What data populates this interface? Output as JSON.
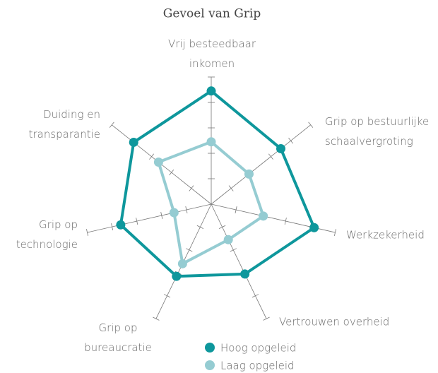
{
  "chart_data": {
    "type": "radar",
    "title": "Gevoel van Grip",
    "categories": [
      "Vrij besteedbaar\ninkomen",
      "Grip op bestuurlijke\nschaalvergroting",
      "Werkzekerheid",
      "Vertrouwen overheid",
      "Grip op\nbureaucratie",
      "Grip op\ntechnologie",
      "Duiding en\ntransparantie"
    ],
    "rlim": [
      0,
      10
    ],
    "rticks": [
      2,
      4,
      6,
      8,
      10
    ],
    "series": [
      {
        "name": "Hoog opgeleid",
        "color": "#0e979c",
        "values": [
          8.9,
          7.0,
          8.3,
          6.1,
          6.3,
          7.3,
          7.8
        ]
      },
      {
        "name": "Laag opgeleid",
        "color": "#95ccd2",
        "values": [
          4.9,
          3.8,
          4.2,
          3.1,
          5.2,
          3.0,
          5.3
        ]
      }
    ]
  }
}
